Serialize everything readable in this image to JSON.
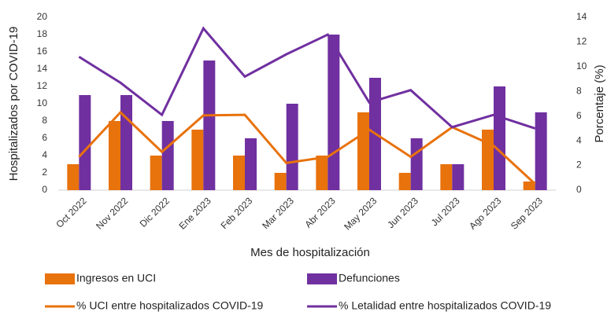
{
  "chart_data": {
    "type": "bar",
    "x_label": "Mes de hospitalización",
    "y_label": "Hospitalizados por COVID-19",
    "y2_label": "Porcentaje (%)",
    "categories": [
      "Oct 2022",
      "Nov 2022",
      "Dic 2022",
      "Ene 2023",
      "Feb 2023",
      "Mar 2023",
      "Abr 2023",
      "May 2023",
      "Jun 2023",
      "Jul 2023",
      "Ago 2023",
      "Sep 2023"
    ],
    "series": [
      {
        "name": "Ingresos en UCI",
        "type": "bar",
        "color": "#e8720c",
        "values": [
          3,
          8,
          4,
          7,
          4,
          2,
          4,
          9,
          2,
          3,
          7,
          1
        ]
      },
      {
        "name": "Defunciones",
        "type": "bar",
        "color": "#7030a0",
        "values": [
          11,
          11,
          8,
          15,
          6,
          10,
          18,
          13,
          6,
          3,
          12,
          9
        ]
      },
      {
        "name": "% UCI entre hospitalizados COVID-19",
        "type": "line",
        "axis": "y2",
        "color": "#e8720c",
        "values": [
          2.7,
          6.3,
          3.1,
          6.05,
          6.1,
          2.2,
          2.7,
          4.9,
          2.7,
          5.1,
          3.6,
          0.5
        ]
      },
      {
        "name": "% Letalidad entre hospitalizados COVID-19",
        "type": "line",
        "axis": "y2",
        "color": "#7030a0",
        "values": [
          10.8,
          8.7,
          6.1,
          13.1,
          9.2,
          11.0,
          12.6,
          7.1,
          8.1,
          5.1,
          6.1,
          5.0
        ]
      }
    ],
    "ylim": [
      0,
      20
    ],
    "yticks": [
      0,
      2,
      4,
      6,
      8,
      10,
      12,
      14,
      16,
      18,
      20
    ],
    "y2lim": [
      0,
      14
    ],
    "y2ticks": [
      0,
      2,
      4,
      6,
      8,
      10,
      12,
      14
    ],
    "grid": false
  }
}
